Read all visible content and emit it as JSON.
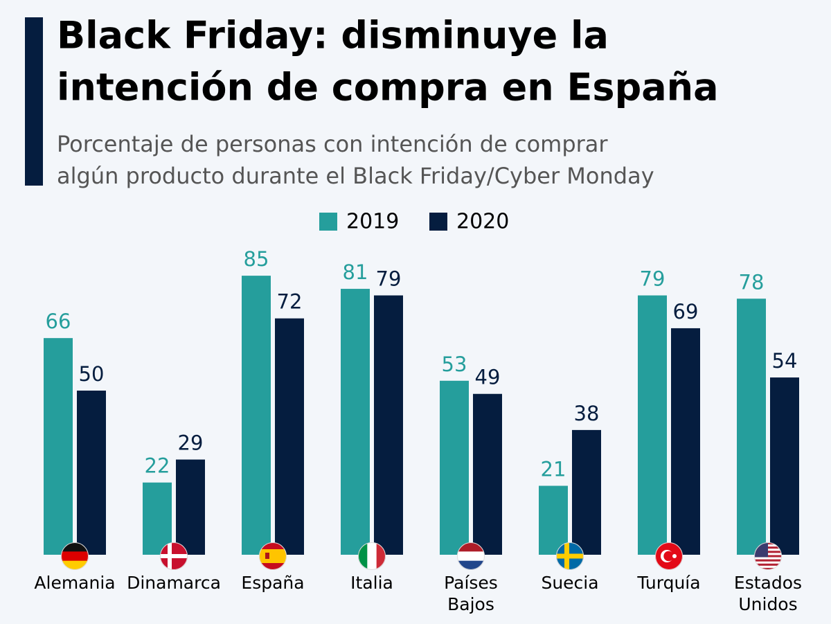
{
  "chart_data": {
    "type": "bar",
    "title": [
      "Black Friday: disminuye la",
      "intención de compra en España"
    ],
    "subtitle": [
      "Porcentaje de personas con intención de comprar",
      "algún producto durante el Black Friday/Cyber Monday"
    ],
    "categories": [
      "Alemania",
      "Dinamarca",
      "España",
      "Italia",
      "Países Bajos",
      "Suecia",
      "Turquía",
      "Estados Unidos"
    ],
    "series": [
      {
        "name": "2019",
        "color": "#259e9c",
        "values": [
          66,
          22,
          85,
          81,
          53,
          21,
          79,
          78
        ]
      },
      {
        "name": "2020",
        "color": "#051d3f",
        "values": [
          50,
          29,
          72,
          79,
          49,
          38,
          69,
          54
        ]
      }
    ]
  }
}
